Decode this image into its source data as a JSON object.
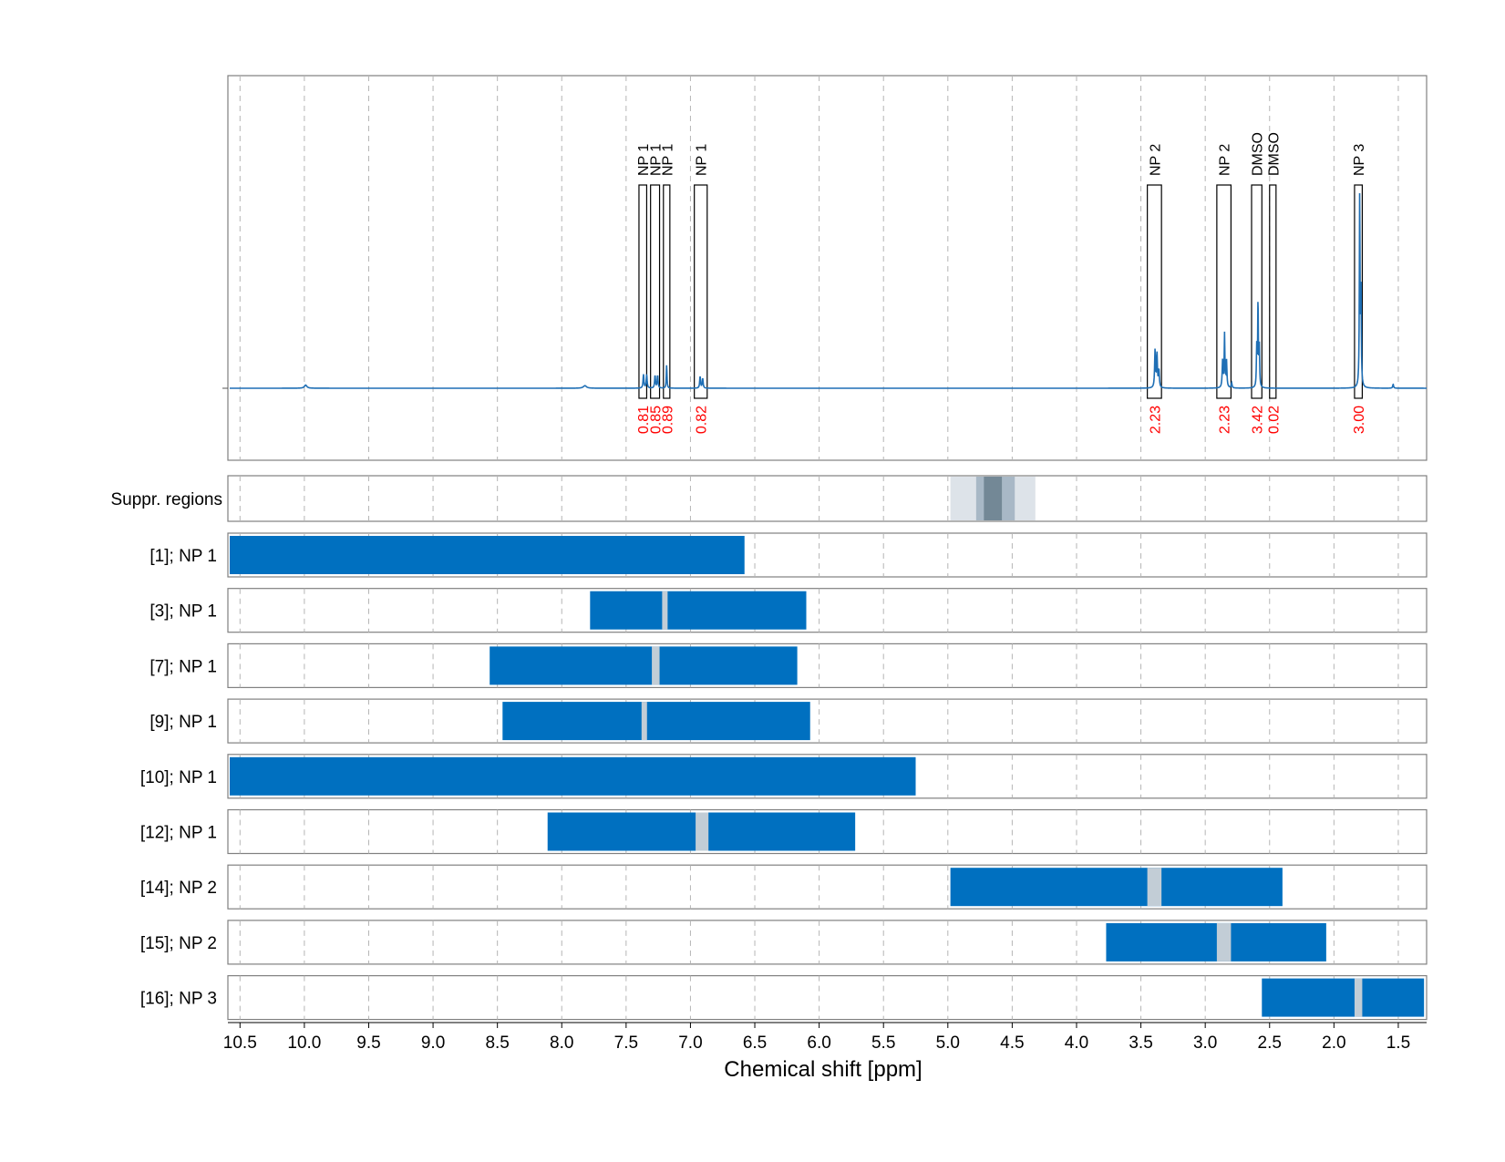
{
  "chart_data": {
    "type": "nmr-spectrum",
    "xlabel": "Chemical shift [ppm]",
    "xlim": [
      10.58,
      1.28
    ],
    "x_reversed": true,
    "x_ticks": [
      10.5,
      10.0,
      9.5,
      9.0,
      8.5,
      8.0,
      7.5,
      7.0,
      6.5,
      6.0,
      5.5,
      5.0,
      4.5,
      4.0,
      3.5,
      3.0,
      2.5,
      2.0,
      1.5
    ],
    "x_tick_labels": [
      "10.5",
      "10.0",
      "9.5",
      "9.0",
      "8.5",
      "8.0",
      "7.5",
      "7.0",
      "6.5",
      "6.0",
      "5.5",
      "5.0",
      "4.5",
      "4.0",
      "3.5",
      "3.0",
      "2.5",
      "2.0",
      "1.5"
    ],
    "grid": true,
    "spectrum": {
      "color": "#1f6fb5",
      "baseline": 0,
      "peaks": [
        {
          "ppm": 9.99,
          "height": 0.016,
          "width": 0.012
        },
        {
          "ppm": 7.82,
          "height": 0.013,
          "width": 0.015
        },
        {
          "ppm": 7.365,
          "height": 0.07,
          "width": 0.004
        },
        {
          "ppm": 7.34,
          "height": 0.07,
          "width": 0.004
        },
        {
          "ppm": 7.275,
          "height": 0.065,
          "width": 0.004
        },
        {
          "ppm": 7.255,
          "height": 0.065,
          "width": 0.004
        },
        {
          "ppm": 7.185,
          "height": 0.12,
          "width": 0.003
        },
        {
          "ppm": 6.925,
          "height": 0.06,
          "width": 0.004
        },
        {
          "ppm": 6.905,
          "height": 0.05,
          "width": 0.004
        },
        {
          "ppm": 3.39,
          "height": 0.19,
          "width": 0.004
        },
        {
          "ppm": 3.375,
          "height": 0.17,
          "width": 0.004
        },
        {
          "ppm": 3.36,
          "height": 0.09,
          "width": 0.004
        },
        {
          "ppm": 2.85,
          "height": 0.27,
          "width": 0.003
        },
        {
          "ppm": 2.865,
          "height": 0.14,
          "width": 0.004
        },
        {
          "ppm": 2.835,
          "height": 0.14,
          "width": 0.004
        },
        {
          "ppm": 2.795,
          "height": 0.025,
          "width": 0.004
        },
        {
          "ppm": 2.59,
          "height": 0.44,
          "width": 0.003
        },
        {
          "ppm": 2.6,
          "height": 0.2,
          "width": 0.003
        },
        {
          "ppm": 2.58,
          "height": 0.2,
          "width": 0.003
        },
        {
          "ppm": 1.8,
          "height": 0.97,
          "width": 0.003
        },
        {
          "ppm": 1.79,
          "height": 0.5,
          "width": 0.003
        },
        {
          "ppm": 1.54,
          "height": 0.02,
          "width": 0.004
        }
      ]
    },
    "integration_regions": [
      {
        "label": "NP 1",
        "from": 7.4,
        "to": 7.34,
        "integral": "0.81"
      },
      {
        "label": "NP 1",
        "from": 7.31,
        "to": 7.24,
        "integral": "0.85"
      },
      {
        "label": "NP 1",
        "from": 7.21,
        "to": 7.16,
        "integral": "0.89"
      },
      {
        "label": "NP 1",
        "from": 6.97,
        "to": 6.87,
        "integral": "0.82"
      },
      {
        "label": "NP 2",
        "from": 3.45,
        "to": 3.34,
        "integral": "2.23"
      },
      {
        "label": "NP 2",
        "from": 2.91,
        "to": 2.8,
        "integral": "2.23"
      },
      {
        "label": "DMSO",
        "from": 2.64,
        "to": 2.56,
        "integral": "3.42"
      },
      {
        "label": "DMSO",
        "from": 2.5,
        "to": 2.45,
        "integral": "0.02"
      },
      {
        "label": "NP 3",
        "from": 1.84,
        "to": 1.78,
        "integral": "3.00"
      }
    ],
    "suppression_track": {
      "label": "Suppr. regions",
      "bands": [
        {
          "from": 4.98,
          "to": 4.32,
          "shade": "#dde3e9"
        },
        {
          "from": 4.78,
          "to": 4.48,
          "shade": "#a8b8c6"
        },
        {
          "from": 4.72,
          "to": 4.58,
          "shade": "#738896"
        }
      ]
    },
    "signal_tracks": [
      {
        "label": "[1]; NP 1",
        "from": 10.58,
        "to": 6.58,
        "gap": null
      },
      {
        "label": "[3]; NP 1",
        "from": 7.78,
        "to": 6.1,
        "gap": [
          7.22,
          7.18
        ]
      },
      {
        "label": "[7]; NP 1",
        "from": 8.56,
        "to": 6.17,
        "gap": [
          7.3,
          7.24
        ]
      },
      {
        "label": "[9]; NP 1",
        "from": 8.46,
        "to": 6.07,
        "gap": [
          7.38,
          7.34
        ]
      },
      {
        "label": "[10]; NP 1",
        "from": 10.58,
        "to": 5.25,
        "gap": null
      },
      {
        "label": "[12]; NP 1",
        "from": 8.11,
        "to": 5.72,
        "gap": [
          6.96,
          6.86
        ]
      },
      {
        "label": "[14]; NP 2",
        "from": 4.98,
        "to": 2.4,
        "gap": [
          3.45,
          3.34
        ]
      },
      {
        "label": "[15]; NP 2",
        "from": 3.77,
        "to": 2.06,
        "gap": [
          2.91,
          2.8
        ]
      },
      {
        "label": "[16]; NP 3",
        "from": 2.56,
        "to": 1.3,
        "gap": [
          1.84,
          1.78
        ]
      }
    ],
    "colors": {
      "bar": "#0070c0",
      "gap": "#c2cdd6",
      "label_text": "#000000",
      "integral_text": "#ff0000",
      "grid": "#b5b5b5",
      "frame": "#808080"
    }
  }
}
